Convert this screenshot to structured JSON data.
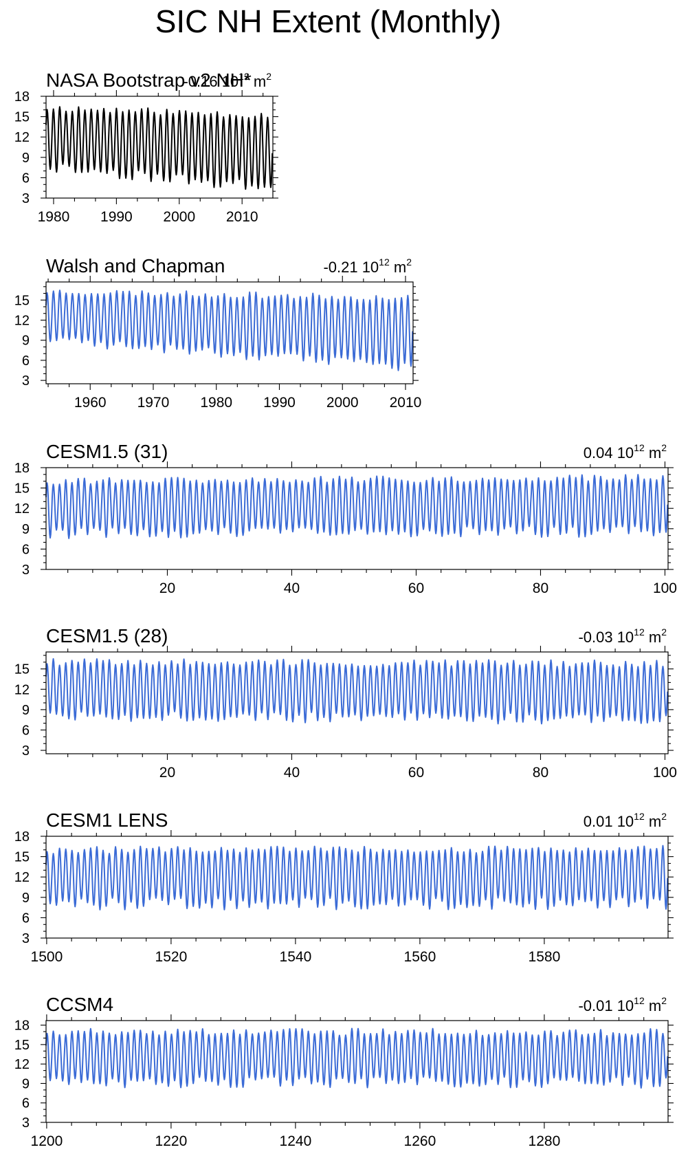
{
  "title": "SIC NH Extent (Monthly)",
  "colors": {
    "model": "#3b6bd6",
    "obs": "#000000",
    "obs_overlay": "#9a9a9a"
  },
  "chart_data": [
    {
      "type": "line",
      "title": "NASA Bootstrap v2 NH*",
      "trend_label": "-0.16 10",
      "trend_exp": "12",
      "trend_unit": " m",
      "trend_unit_exp": "2",
      "x_range": [
        1978.8,
        2014.9
      ],
      "ylim": [
        3,
        18
      ],
      "yticks": [
        3,
        6,
        9,
        12,
        15,
        18
      ],
      "xticks": [
        1980,
        1990,
        2000,
        2010
      ],
      "xminor": 2,
      "color": "#000000",
      "series": [
        {
          "name": "",
          "cycle_years": 36,
          "max_start": 16.3,
          "max_end": 15.2,
          "min_start": 7.6,
          "min_end": 4.5,
          "noise": 0.5,
          "seed": 11
        }
      ]
    },
    {
      "type": "line",
      "title": "Walsh and Chapman",
      "trend_label": "-0.21 10",
      "trend_exp": "12",
      "trend_unit": " m",
      "trend_unit_exp": "2",
      "x_range": [
        1953,
        2011.2
      ],
      "ylim": [
        2.5,
        17.7
      ],
      "yticks": [
        3,
        6,
        9,
        12,
        15
      ],
      "xticks": [
        1960,
        1970,
        1980,
        1990,
        2000,
        2010
      ],
      "xminor": 2,
      "color": "#3b6bd6",
      "series": [
        {
          "name": "",
          "cycle_years": 58,
          "max_start": 16.3,
          "max_end": 15.3,
          "min_start": 9.0,
          "min_end": 5.0,
          "noise": 0.45,
          "seed": 23
        }
      ]
    },
    {
      "type": "line",
      "title": "CESM1.5 (31)",
      "trend_label": "0.04 10",
      "trend_exp": "12",
      "trend_unit": " m",
      "trend_unit_exp": "2",
      "x_range": [
        0.5,
        100.5
      ],
      "ylim": [
        3,
        18
      ],
      "yticks": [
        3,
        6,
        9,
        12,
        15,
        18
      ],
      "xticks": [
        20,
        40,
        60,
        80,
        100
      ],
      "xminor": 4,
      "color": "#3b6bd6",
      "series": [
        {
          "name": "",
          "cycle_years": 100,
          "max_start": 16.0,
          "max_end": 16.5,
          "min_start": 8.3,
          "min_end": 8.6,
          "noise": 0.5,
          "seed": 31
        }
      ]
    },
    {
      "type": "line",
      "title": "CESM1.5 (28)",
      "trend_label": "-0.03 10",
      "trend_exp": "12",
      "trend_unit": " m",
      "trend_unit_exp": "2",
      "x_range": [
        0.5,
        100.5
      ],
      "ylim": [
        2.5,
        17.5
      ],
      "yticks": [
        3,
        6,
        9,
        12,
        15
      ],
      "xticks": [
        20,
        40,
        60,
        80,
        100
      ],
      "xminor": 4,
      "color": "#3b6bd6",
      "series": [
        {
          "name": "",
          "cycle_years": 100,
          "max_start": 16.0,
          "max_end": 15.8,
          "min_start": 8.0,
          "min_end": 7.6,
          "noise": 0.5,
          "seed": 28
        }
      ]
    },
    {
      "type": "line",
      "title": "CESM1 LENS",
      "trend_label": "0.01 10",
      "trend_exp": "12",
      "trend_unit": " m",
      "trend_unit_exp": "2",
      "x_range": [
        1499.9,
        1599.9
      ],
      "ylim": [
        3,
        18
      ],
      "yticks": [
        3,
        6,
        9,
        12,
        15,
        18
      ],
      "xticks": [
        1500,
        1520,
        1540,
        1560,
        1580
      ],
      "xminor": 4,
      "color": "#3b6bd6",
      "series": [
        {
          "name": "",
          "cycle_years": 100,
          "max_start": 16.0,
          "max_end": 16.1,
          "min_start": 8.0,
          "min_end": 8.1,
          "noise": 0.55,
          "seed": 47
        }
      ]
    },
    {
      "type": "line",
      "title": "CCSM4",
      "trend_label": "-0.01 10",
      "trend_exp": "12",
      "trend_unit": " m",
      "trend_unit_exp": "2",
      "x_range": [
        1199.9,
        1299.9
      ],
      "ylim": [
        3,
        18.7
      ],
      "yticks": [
        3,
        6,
        9,
        12,
        15,
        18
      ],
      "xticks": [
        1200,
        1220,
        1240,
        1260,
        1280
      ],
      "xminor": 4,
      "color": "#3b6bd6",
      "series": [
        {
          "name": "",
          "cycle_years": 100,
          "max_start": 17.0,
          "max_end": 16.9,
          "min_start": 9.2,
          "min_end": 9.1,
          "noise": 0.55,
          "seed": 4
        }
      ]
    }
  ]
}
